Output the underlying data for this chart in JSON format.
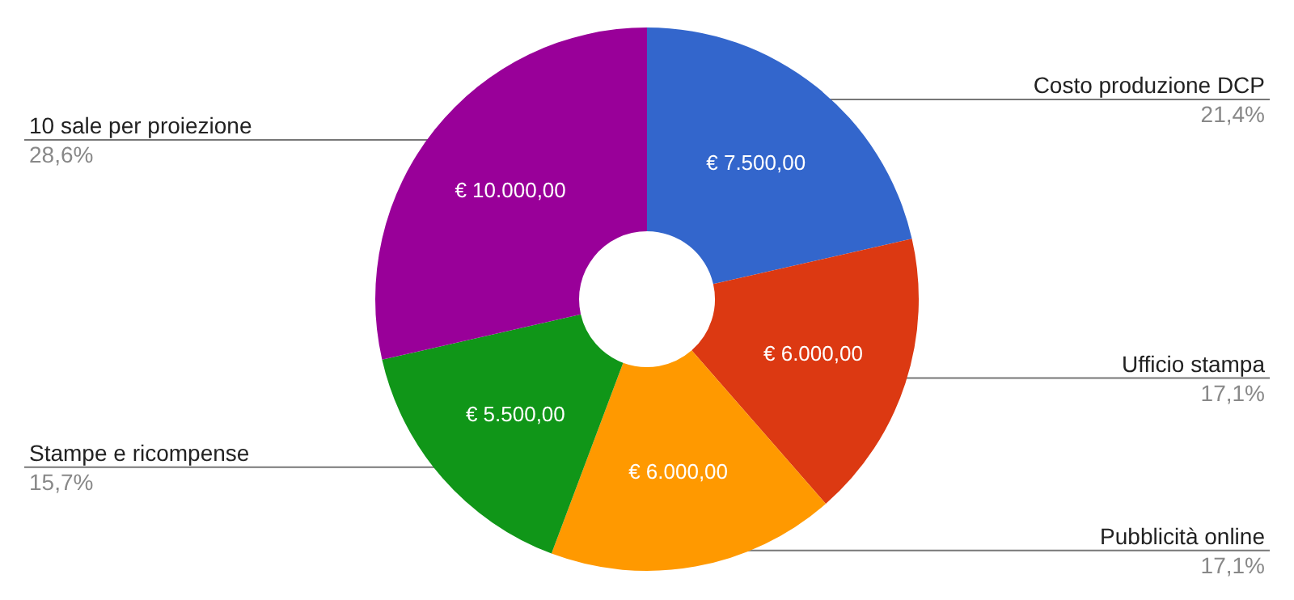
{
  "chart_data": {
    "type": "donut",
    "categories": [
      "Costo produzione DCP",
      "Ufficio stampa",
      "Pubblicità online",
      "Stampe e ricompense",
      "10 sale per proiezione"
    ],
    "values": [
      7500,
      6000,
      6000,
      5500,
      10000
    ],
    "colors": [
      "#3366cc",
      "#dc3912",
      "#ff9900",
      "#109618",
      "#990099"
    ],
    "value_labels": [
      "€ 7.500,00",
      "€ 6.000,00",
      "€ 6.000,00",
      "€ 5.500,00",
      "€ 10.000,00"
    ],
    "annotations": [
      "21,4%",
      "17,1%",
      "17,1%",
      "15,7%",
      "28,6%"
    ],
    "legend": false
  }
}
